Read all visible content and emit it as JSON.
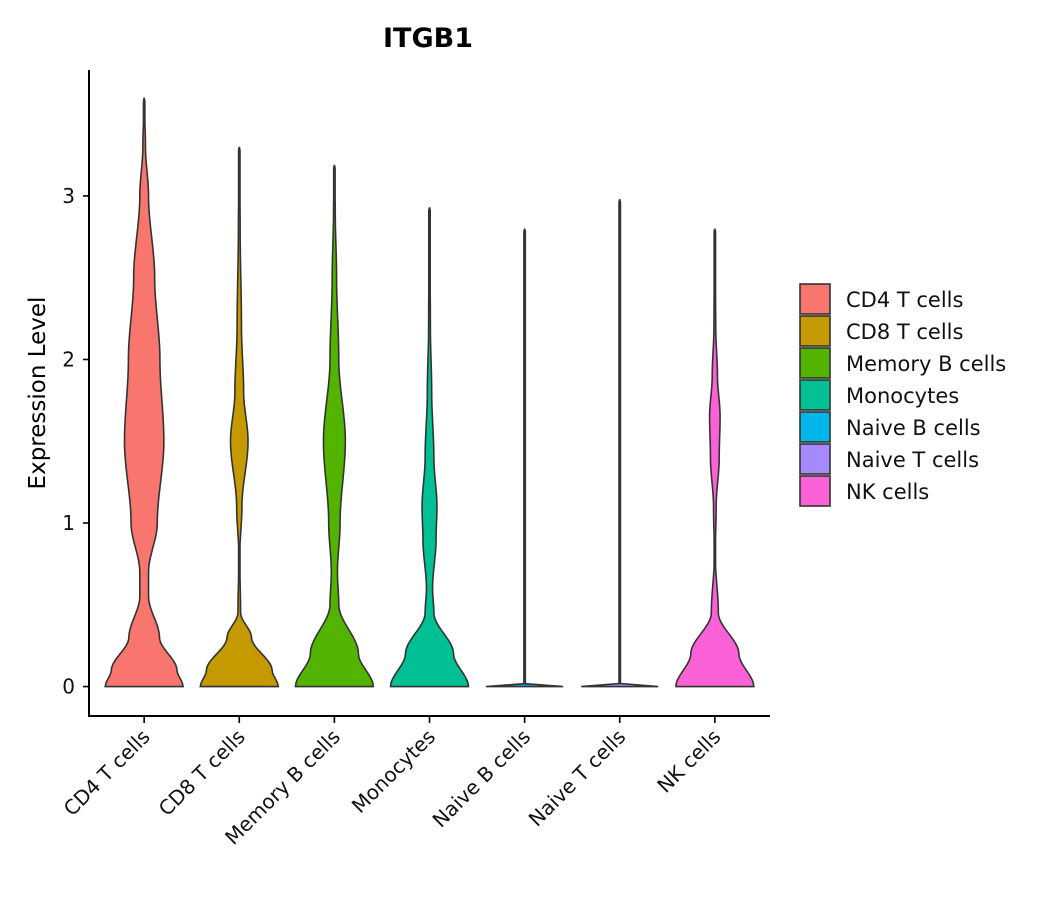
{
  "chart_data": {
    "type": "violin",
    "title": "ITGB1",
    "xlabel": "",
    "ylabel": "Expression Level",
    "ylim": [
      -0.18,
      3.77
    ],
    "yticks": [
      0,
      1,
      2,
      3
    ],
    "legend_position": "right",
    "categories": [
      "CD4 T cells",
      "CD8 T cells",
      "Memory B cells",
      "Monocytes",
      "Naive B cells",
      "Naive T cells",
      "NK cells"
    ],
    "colors": [
      "#F8766D",
      "#C49A00",
      "#53B400",
      "#00C094",
      "#00B6EB",
      "#A58AFF",
      "#FB61D7"
    ],
    "series": [
      {
        "name": "CD4 T cells",
        "max": 3.6,
        "profile": [
          [
            0,
            0.89
          ],
          [
            0.1,
            0.75
          ],
          [
            0.3,
            0.35
          ],
          [
            0.55,
            0.1
          ],
          [
            0.7,
            0.1
          ],
          [
            1.0,
            0.3
          ],
          [
            1.5,
            0.45
          ],
          [
            2.0,
            0.36
          ],
          [
            2.5,
            0.24
          ],
          [
            3.0,
            0.1
          ],
          [
            3.3,
            0.03
          ],
          [
            3.6,
            0.0
          ]
        ]
      },
      {
        "name": "CD8 T cells",
        "max": 3.3,
        "profile": [
          [
            0,
            0.89
          ],
          [
            0.1,
            0.75
          ],
          [
            0.3,
            0.28
          ],
          [
            0.45,
            0.03
          ],
          [
            0.8,
            0.01
          ],
          [
            1.1,
            0.06
          ],
          [
            1.5,
            0.2
          ],
          [
            1.8,
            0.1
          ],
          [
            2.2,
            0.05
          ],
          [
            2.8,
            0.02
          ],
          [
            3.3,
            0.0
          ]
        ]
      },
      {
        "name": "Memory B cells",
        "max": 3.19,
        "profile": [
          [
            0,
            0.89
          ],
          [
            0.2,
            0.55
          ],
          [
            0.5,
            0.1
          ],
          [
            0.7,
            0.07
          ],
          [
            1.0,
            0.13
          ],
          [
            1.5,
            0.25
          ],
          [
            2.0,
            0.1
          ],
          [
            2.5,
            0.05
          ],
          [
            2.9,
            0.02
          ],
          [
            3.19,
            0.0
          ]
        ]
      },
      {
        "name": "Monocytes",
        "max": 2.93,
        "profile": [
          [
            0,
            0.89
          ],
          [
            0.2,
            0.55
          ],
          [
            0.45,
            0.1
          ],
          [
            0.6,
            0.07
          ],
          [
            0.9,
            0.15
          ],
          [
            1.1,
            0.17
          ],
          [
            1.4,
            0.1
          ],
          [
            1.8,
            0.05
          ],
          [
            2.2,
            0.02
          ],
          [
            2.93,
            0.0
          ]
        ]
      },
      {
        "name": "Naive B cells",
        "max": 2.8,
        "profile": [
          [
            0,
            0.88
          ],
          [
            0.01,
            0.01
          ],
          [
            2.8,
            0.0
          ]
        ]
      },
      {
        "name": "Naive T cells",
        "max": 2.98,
        "profile": [
          [
            0,
            0.88
          ],
          [
            0.01,
            0.01
          ],
          [
            2.98,
            0.0
          ]
        ]
      },
      {
        "name": "NK cells",
        "max": 2.8,
        "profile": [
          [
            0,
            0.89
          ],
          [
            0.2,
            0.55
          ],
          [
            0.45,
            0.08
          ],
          [
            0.8,
            0.01
          ],
          [
            1.1,
            0.03
          ],
          [
            1.4,
            0.1
          ],
          [
            1.65,
            0.12
          ],
          [
            1.9,
            0.06
          ],
          [
            2.2,
            0.02
          ],
          [
            2.8,
            0.0
          ]
        ]
      }
    ]
  }
}
